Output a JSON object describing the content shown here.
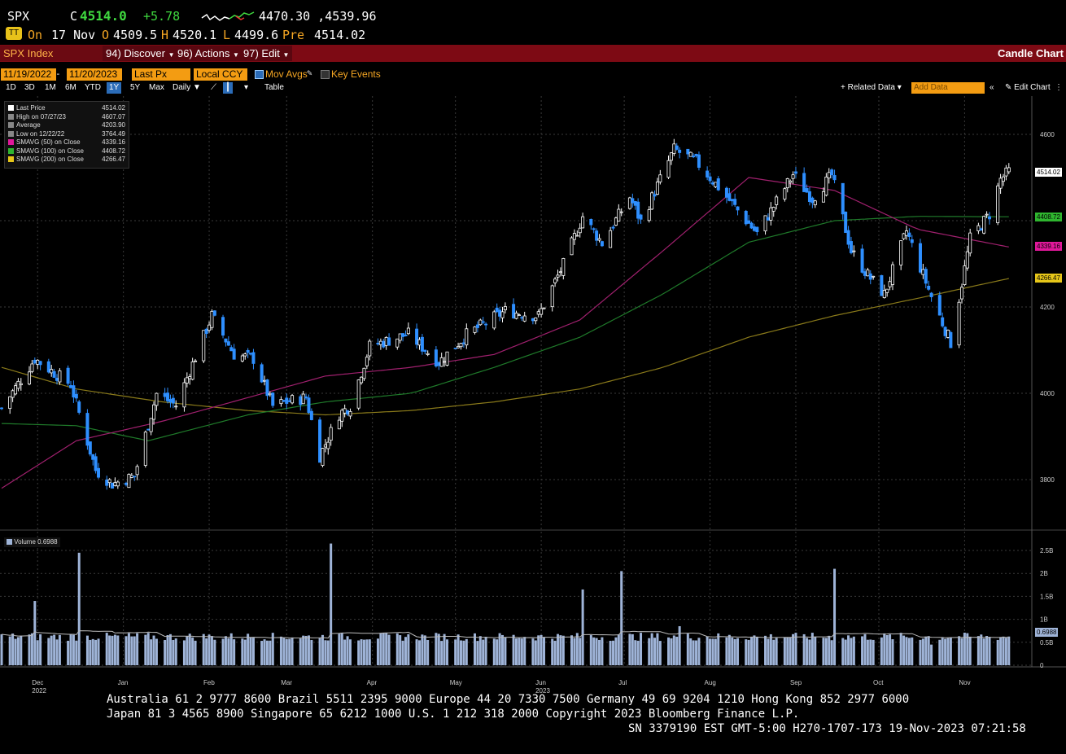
{
  "header": {
    "ticker": "SPX",
    "c_label": "C",
    "last": "4514.0",
    "change": "+5.78",
    "range": "4470.30 ,4539.96",
    "on_label": "On",
    "date": "17 Nov",
    "open_label": "O",
    "open": "4509.5",
    "high_label": "H",
    "high": "4520.1",
    "low_label": "L",
    "low": "4499.6",
    "pre_label": "Pre",
    "pre": "4514.02"
  },
  "toolbar": {
    "security": "SPX Index",
    "discover": "94) Discover",
    "actions": "96) Actions",
    "edit": "97) Edit",
    "chart_type": "Candle Chart"
  },
  "controls": {
    "start_date": "11/19/2022",
    "end_date": "11/20/2023",
    "field": "Last Px",
    "currency": "Local CCY",
    "mov_avgs": "Mov Avgs",
    "key_events": "Key Events",
    "related_data": "Related Data",
    "add_data_placeholder": "Add Data",
    "edit_chart": "Edit Chart",
    "table": "Table",
    "periods": [
      "1D",
      "3D",
      "1M",
      "6M",
      "YTD",
      "1Y",
      "5Y",
      "Max"
    ],
    "selected_period": "1Y",
    "frequency": "Daily"
  },
  "legend": [
    {
      "label": "Last Price",
      "value": "4514.02",
      "color": "#ffffff"
    },
    {
      "label": "High on 07/27/23",
      "value": "4607.07",
      "color": "#888888"
    },
    {
      "label": "Average",
      "value": "4203.90",
      "color": "#888888"
    },
    {
      "label": "Low on 12/22/22",
      "value": "3764.49",
      "color": "#888888"
    },
    {
      "label": "SMAVG (50)  on Close",
      "value": "4339.16",
      "color": "#e0189a"
    },
    {
      "label": "SMAVG (100)  on Close",
      "value": "4408.72",
      "color": "#2fb52f"
    },
    {
      "label": "SMAVG (200)  on Close",
      "value": "4266.47",
      "color": "#e6c619"
    }
  ],
  "price_badges": {
    "last": "4514.02",
    "sma100": "4408.72",
    "sma50": "4339.16",
    "sma200": "4266.47"
  },
  "volume_legend": "Volume 0.6988",
  "volume_badge": "0.6988",
  "footer": {
    "line1": "Australia 61 2 9777 8600 Brazil 5511 2395 9000 Europe 44 20 7330 7500 Germany 49 69 9204 1210 Hong Kong 852 2977 6000",
    "line2": "Japan 81 3 4565 8900       Singapore 65 6212 1000      U.S. 1 212 318 2000          Copyright 2023 Bloomberg Finance L.P.",
    "line3": "SN 3379190 EST  GMT-5:00 H270-1707-173 19-Nov-2023 07:21:58"
  },
  "colors": {
    "up": "#ffffff",
    "down": "#2e8fff",
    "sma50": "#a0206e",
    "sma100": "#1f7a2a",
    "sma200": "#8a7a1a",
    "volume": "#9fb4d8"
  },
  "chart_data": {
    "type": "candlestick",
    "price_axis": {
      "ticks": [
        3800,
        4000,
        4200,
        4600
      ],
      "ylim": [
        3700,
        4700
      ]
    },
    "volume_axis": {
      "ticks": [
        "0",
        "0.5B",
        "1B",
        "1.5B",
        "2B",
        "2.5B"
      ],
      "ylim": [
        0,
        2.6
      ]
    },
    "x_labels": [
      {
        "label": "Dec",
        "date": "2022-12-01",
        "year": "2022"
      },
      {
        "label": "Jan",
        "date": "2023-01-01"
      },
      {
        "label": "Feb",
        "date": "2023-02-01"
      },
      {
        "label": "Mar",
        "date": "2023-03-01"
      },
      {
        "label": "Apr",
        "date": "2023-04-01"
      },
      {
        "label": "May",
        "date": "2023-05-01"
      },
      {
        "label": "Jun",
        "date": "2023-06-01",
        "year": "2023"
      },
      {
        "label": "Jul",
        "date": "2023-07-01"
      },
      {
        "label": "Aug",
        "date": "2023-08-01"
      },
      {
        "label": "Sep",
        "date": "2023-09-01"
      },
      {
        "label": "Oct",
        "date": "2023-10-01"
      },
      {
        "label": "Nov",
        "date": "2023-11-01"
      }
    ],
    "close_anchors": [
      [
        "2022-11-18",
        3965
      ],
      [
        "2022-11-30",
        4080
      ],
      [
        "2022-12-13",
        4020
      ],
      [
        "2022-12-22",
        3822
      ],
      [
        "2022-12-28",
        3790
      ],
      [
        "2023-01-05",
        3808
      ],
      [
        "2023-01-13",
        3999
      ],
      [
        "2023-01-20",
        3972
      ],
      [
        "2023-02-02",
        4180
      ],
      [
        "2023-02-10",
        4090
      ],
      [
        "2023-02-17",
        4080
      ],
      [
        "2023-02-24",
        3970
      ],
      [
        "2023-03-02",
        3982
      ],
      [
        "2023-03-08",
        3990
      ],
      [
        "2023-03-13",
        3855
      ],
      [
        "2023-03-20",
        3952
      ],
      [
        "2023-03-24",
        3971
      ],
      [
        "2023-03-31",
        4109
      ],
      [
        "2023-04-14",
        4137
      ],
      [
        "2023-04-25",
        4072
      ],
      [
        "2023-05-05",
        4136
      ],
      [
        "2023-05-19",
        4191
      ],
      [
        "2023-05-31",
        4179
      ],
      [
        "2023-06-09",
        4298
      ],
      [
        "2023-06-16",
        4410
      ],
      [
        "2023-06-23",
        4348
      ],
      [
        "2023-07-03",
        4455
      ],
      [
        "2023-07-07",
        4398
      ],
      [
        "2023-07-19",
        4565
      ],
      [
        "2023-07-27",
        4537
      ],
      [
        "2023-08-04",
        4478
      ],
      [
        "2023-08-18",
        4370
      ],
      [
        "2023-08-31",
        4507
      ],
      [
        "2023-09-07",
        4451
      ],
      [
        "2023-09-14",
        4505
      ],
      [
        "2023-09-21",
        4330
      ],
      [
        "2023-09-27",
        4274
      ],
      [
        "2023-10-03",
        4229
      ],
      [
        "2023-10-11",
        4376
      ],
      [
        "2023-10-20",
        4224
      ],
      [
        "2023-10-27",
        4117
      ],
      [
        "2023-11-03",
        4358
      ],
      [
        "2023-11-10",
        4415
      ],
      [
        "2023-11-14",
        4496
      ],
      [
        "2023-11-17",
        4514
      ]
    ],
    "sma50_anchors": [
      [
        "2022-11-18",
        3780
      ],
      [
        "2022-12-15",
        3890
      ],
      [
        "2023-01-15",
        3935
      ],
      [
        "2023-02-15",
        3990
      ],
      [
        "2023-03-15",
        4040
      ],
      [
        "2023-04-15",
        4060
      ],
      [
        "2023-05-15",
        4090
      ],
      [
        "2023-06-15",
        4170
      ],
      [
        "2023-07-15",
        4330
      ],
      [
        "2023-08-15",
        4500
      ],
      [
        "2023-09-15",
        4470
      ],
      [
        "2023-10-15",
        4380
      ],
      [
        "2023-11-17",
        4339
      ]
    ],
    "sma100_anchors": [
      [
        "2022-11-18",
        3930
      ],
      [
        "2022-12-15",
        3925
      ],
      [
        "2023-01-10",
        3890
      ],
      [
        "2023-02-15",
        3950
      ],
      [
        "2023-03-15",
        3980
      ],
      [
        "2023-04-15",
        4000
      ],
      [
        "2023-05-15",
        4060
      ],
      [
        "2023-06-15",
        4130
      ],
      [
        "2023-07-15",
        4230
      ],
      [
        "2023-08-15",
        4350
      ],
      [
        "2023-09-15",
        4400
      ],
      [
        "2023-10-15",
        4410
      ],
      [
        "2023-11-17",
        4409
      ]
    ],
    "sma200_anchors": [
      [
        "2022-11-18",
        4060
      ],
      [
        "2022-12-15",
        4010
      ],
      [
        "2023-01-15",
        3980
      ],
      [
        "2023-02-15",
        3960
      ],
      [
        "2023-03-15",
        3950
      ],
      [
        "2023-04-15",
        3960
      ],
      [
        "2023-05-15",
        3980
      ],
      [
        "2023-06-15",
        4010
      ],
      [
        "2023-07-15",
        4060
      ],
      [
        "2023-08-15",
        4130
      ],
      [
        "2023-09-15",
        4180
      ],
      [
        "2023-10-15",
        4220
      ],
      [
        "2023-11-17",
        4266
      ]
    ],
    "volume_typical": 0.62,
    "volume_spikes": [
      [
        "2022-11-30",
        1.4
      ],
      [
        "2022-12-16",
        2.45
      ],
      [
        "2023-03-17",
        2.65
      ],
      [
        "2023-06-16",
        1.65
      ],
      [
        "2023-06-30",
        2.05
      ],
      [
        "2023-07-21",
        0.85
      ],
      [
        "2023-09-15",
        2.1
      ],
      [
        "2023-10-20",
        0.45
      ]
    ]
  }
}
